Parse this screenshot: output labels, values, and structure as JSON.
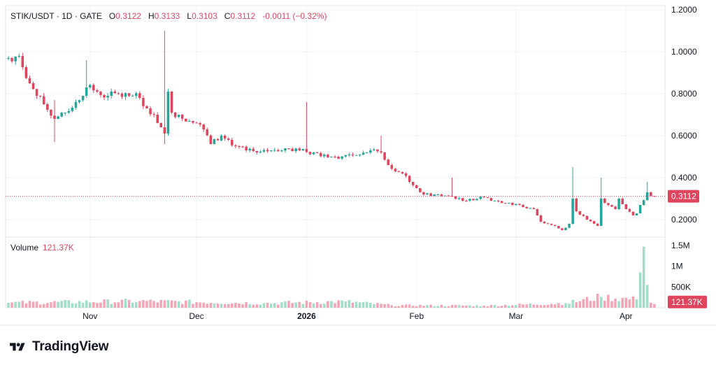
{
  "legend": {
    "symbol": "STIK/USDT · 1D · GATE",
    "o_label": "O",
    "o_value": "0.3122",
    "h_label": "H",
    "h_value": "0.3133",
    "l_label": "L",
    "l_value": "0.3103",
    "c_label": "C",
    "c_value": "0.3112",
    "change": "-0.0011 (−0.32%)"
  },
  "volume_legend": {
    "label": "Volume",
    "value": "121.37K"
  },
  "brand": {
    "name": "TradingView",
    "logo_icon": "tradingview-logo-icon"
  },
  "colors": {
    "up": "#26a69a",
    "down": "#e0455e",
    "up_vol": "#a3dcc9",
    "down_vol": "#f4a5b5",
    "grid": "#f0f3fa",
    "price_line": "#e0455e"
  },
  "chart_data": {
    "type": "candlestick",
    "symbol": "STIK/USDT",
    "interval": "1D",
    "exchange": "GATE",
    "price_axis": {
      "ticks": [
        0.2,
        0.4,
        0.6,
        0.8,
        1.0,
        1.2
      ],
      "tick_labels": [
        "0.2000",
        "0.4000",
        "0.6000",
        "0.8000",
        "1.0000",
        "1.2000"
      ],
      "range": [
        0.12,
        1.22
      ]
    },
    "time_axis": {
      "labels": [
        "Nov",
        "Dec",
        "2026",
        "Feb",
        "Mar",
        "Apr"
      ],
      "label_dates": [
        "2025-11-01",
        "2025-12-01",
        "2026-01-01",
        "2026-02-01",
        "2026-03-01",
        "2026-04-01"
      ],
      "start": "2025-10-09",
      "end": "2026-04-10",
      "bold_label": "2026"
    },
    "current_price": {
      "value": 0.3112,
      "label": "0.3112"
    },
    "volume_axis": {
      "ticks": [
        500000,
        1000000,
        1500000
      ],
      "tick_labels": [
        "500K",
        "1M",
        "1.5M"
      ],
      "range": [
        0,
        1600000
      ]
    },
    "current_volume": {
      "value": 121370,
      "label": "121.37K"
    },
    "keypoints": [
      {
        "x": "2025-10-09",
        "close": 0.97
      },
      {
        "x": "2025-10-12",
        "close": 0.98
      },
      {
        "x": "2025-10-15",
        "close": 0.85
      },
      {
        "x": "2025-10-17",
        "close": 0.79
      },
      {
        "x": "2025-10-19",
        "close": 0.75
      },
      {
        "x": "2025-10-22",
        "close": 0.68
      },
      {
        "x": "2025-10-25",
        "close": 0.71
      },
      {
        "x": "2025-10-28",
        "close": 0.76
      },
      {
        "x": "2025-10-31",
        "close": 0.83
      },
      {
        "x": "2025-11-03",
        "close": 0.81
      },
      {
        "x": "2025-11-06",
        "close": 0.79
      },
      {
        "x": "2025-11-09",
        "close": 0.8
      },
      {
        "x": "2025-11-12",
        "close": 0.79
      },
      {
        "x": "2025-11-15",
        "close": 0.78
      },
      {
        "x": "2025-11-17",
        "close": 0.73
      },
      {
        "x": "2025-11-19",
        "close": 0.7
      },
      {
        "x": "2025-11-21",
        "close": 0.64
      },
      {
        "x": "2025-11-22",
        "close": 0.61
      },
      {
        "x": "2025-11-23",
        "close": 0.81
      },
      {
        "x": "2025-11-24",
        "close": 0.71
      },
      {
        "x": "2025-11-26",
        "close": 0.7
      },
      {
        "x": "2025-11-29",
        "close": 0.67
      },
      {
        "x": "2025-12-01",
        "close": 0.66
      },
      {
        "x": "2025-12-03",
        "close": 0.63
      },
      {
        "x": "2025-12-05",
        "close": 0.56
      },
      {
        "x": "2025-12-08",
        "close": 0.6
      },
      {
        "x": "2025-12-10",
        "close": 0.58
      },
      {
        "x": "2025-12-12",
        "close": 0.55
      },
      {
        "x": "2025-12-15",
        "close": 0.53
      },
      {
        "x": "2025-12-18",
        "close": 0.52
      },
      {
        "x": "2025-12-22",
        "close": 0.53
      },
      {
        "x": "2025-12-26",
        "close": 0.54
      },
      {
        "x": "2025-12-30",
        "close": 0.53
      },
      {
        "x": "2026-01-03",
        "close": 0.52
      },
      {
        "x": "2026-01-06",
        "close": 0.51
      },
      {
        "x": "2026-01-09",
        "close": 0.5
      },
      {
        "x": "2026-01-13",
        "close": 0.51
      },
      {
        "x": "2026-01-16",
        "close": 0.51
      },
      {
        "x": "2026-01-19",
        "close": 0.53
      },
      {
        "x": "2026-01-22",
        "close": 0.52
      },
      {
        "x": "2026-01-24",
        "close": 0.46
      },
      {
        "x": "2026-01-26",
        "close": 0.43
      },
      {
        "x": "2026-01-28",
        "close": 0.42
      },
      {
        "x": "2026-01-30",
        "close": 0.38
      },
      {
        "x": "2026-02-01",
        "close": 0.35
      },
      {
        "x": "2026-02-03",
        "close": 0.32
      },
      {
        "x": "2026-02-07",
        "close": 0.32
      },
      {
        "x": "2026-02-11",
        "close": 0.31
      },
      {
        "x": "2026-02-15",
        "close": 0.29
      },
      {
        "x": "2026-02-19",
        "close": 0.31
      },
      {
        "x": "2026-02-23",
        "close": 0.29
      },
      {
        "x": "2026-02-27",
        "close": 0.28
      },
      {
        "x": "2026-03-03",
        "close": 0.26
      },
      {
        "x": "2026-03-06",
        "close": 0.25
      },
      {
        "x": "2026-03-08",
        "close": 0.19
      },
      {
        "x": "2026-03-12",
        "close": 0.17
      },
      {
        "x": "2026-03-14",
        "close": 0.15
      },
      {
        "x": "2026-03-16",
        "close": 0.18
      },
      {
        "x": "2026-03-17",
        "close": 0.3
      },
      {
        "x": "2026-03-18",
        "close": 0.24
      },
      {
        "x": "2026-03-21",
        "close": 0.2
      },
      {
        "x": "2026-03-24",
        "close": 0.17
      },
      {
        "x": "2026-03-25",
        "close": 0.3
      },
      {
        "x": "2026-03-27",
        "close": 0.27
      },
      {
        "x": "2026-03-29",
        "close": 0.25
      },
      {
        "x": "2026-03-30",
        "close": 0.3
      },
      {
        "x": "2026-04-01",
        "close": 0.25
      },
      {
        "x": "2026-04-03",
        "close": 0.22
      },
      {
        "x": "2026-04-04",
        "close": 0.23
      },
      {
        "x": "2026-04-07",
        "close": 0.33
      },
      {
        "x": "2026-04-08",
        "close": 0.3122
      },
      {
        "x": "2026-04-09",
        "close": 0.3112
      }
    ],
    "wick_spikes": [
      {
        "x": "2025-10-22",
        "high": 0.77,
        "low": 0.57
      },
      {
        "x": "2025-10-31",
        "high": 0.96
      },
      {
        "x": "2025-11-22",
        "high": 1.1,
        "low": 0.56
      },
      {
        "x": "2026-01-01",
        "high": 0.76
      },
      {
        "x": "2026-01-22",
        "high": 0.6
      },
      {
        "x": "2026-02-11",
        "high": 0.4
      },
      {
        "x": "2026-03-17",
        "high": 0.45
      },
      {
        "x": "2026-03-25",
        "high": 0.4
      },
      {
        "x": "2026-04-07",
        "high": 0.38
      }
    ],
    "volume_keypoints": [
      {
        "x": "2025-10-09",
        "value": 120000
      },
      {
        "x": "2025-11-15",
        "value": 160000
      },
      {
        "x": "2025-12-20",
        "value": 110000
      },
      {
        "x": "2026-01-12",
        "value": 150000
      },
      {
        "x": "2026-01-25",
        "value": 60000
      },
      {
        "x": "2026-02-20",
        "value": 50000
      },
      {
        "x": "2026-03-15",
        "value": 110000
      },
      {
        "x": "2026-03-25",
        "value": 260000
      },
      {
        "x": "2026-04-04",
        "value": 200000
      },
      {
        "x": "2026-04-05",
        "value": 850000
      },
      {
        "x": "2026-04-06",
        "value": 1470000
      },
      {
        "x": "2026-04-07",
        "value": 550000
      },
      {
        "x": "2026-04-08",
        "value": 121370
      }
    ]
  }
}
